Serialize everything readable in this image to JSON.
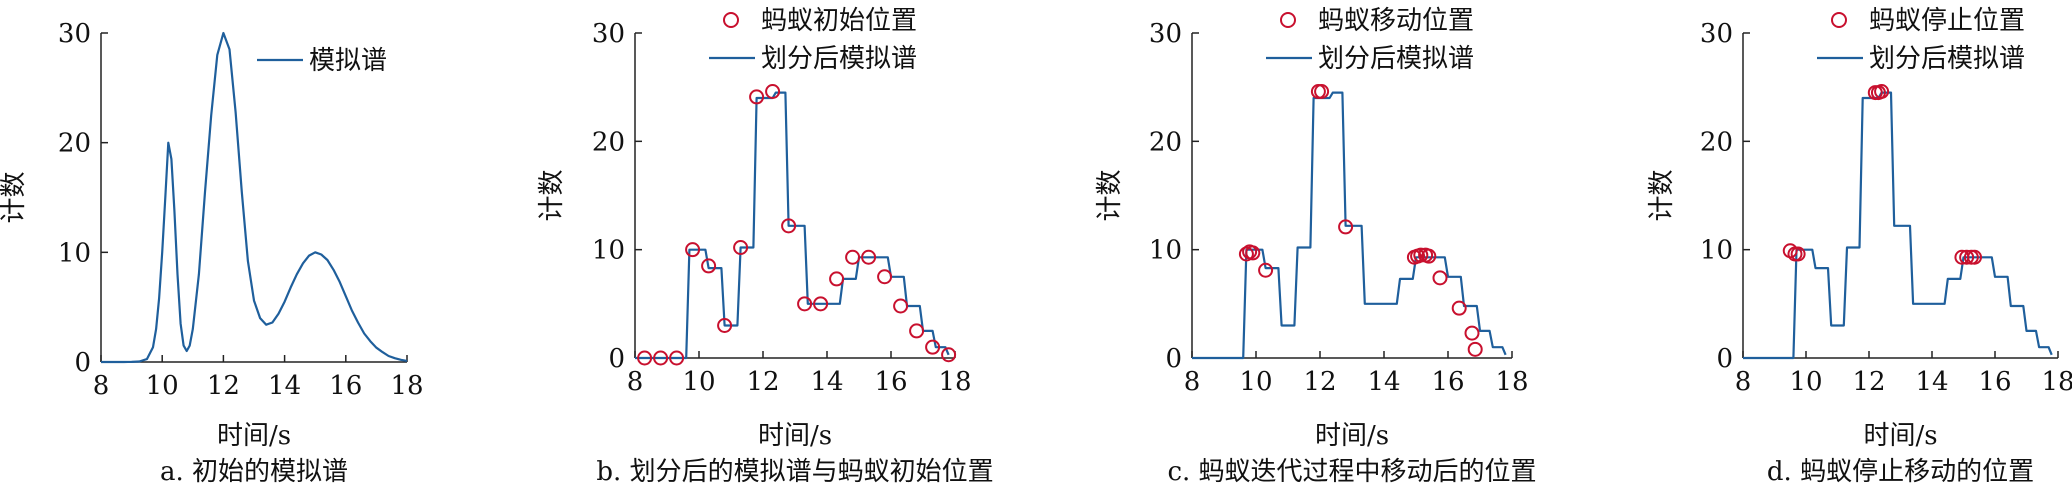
{
  "colors": {
    "line": "#1f5f9c",
    "marker": "#c8102e",
    "axis": "#222222"
  },
  "chart_data": [
    {
      "id": "a",
      "type": "line",
      "caption": "a. 初始的模拟谱",
      "xlabel": "时间/s",
      "ylabel": "计数",
      "xlim": [
        8,
        18
      ],
      "ylim": [
        0,
        30
      ],
      "xticks": [
        8,
        10,
        12,
        14,
        16,
        18
      ],
      "yticks": [
        0,
        10,
        20,
        30
      ],
      "xtick_labels": [
        "8",
        "10",
        "12",
        "14",
        "16",
        "18"
      ],
      "ytick_labels": [
        "0",
        "10",
        "20",
        "30"
      ],
      "legend": {
        "position": "top-right",
        "entries": [
          {
            "kind": "line",
            "label": "模拟谱"
          }
        ]
      },
      "series": [
        {
          "name": "模拟谱",
          "style": "line",
          "x": [
            8.0,
            8.25,
            8.5,
            8.75,
            9.0,
            9.25,
            9.5,
            9.7,
            9.8,
            9.9,
            10.0,
            10.1,
            10.2,
            10.3,
            10.4,
            10.5,
            10.6,
            10.7,
            10.8,
            10.9,
            11.0,
            11.2,
            11.4,
            11.6,
            11.8,
            12.0,
            12.2,
            12.4,
            12.6,
            12.8,
            13.0,
            13.2,
            13.4,
            13.6,
            13.8,
            14.0,
            14.2,
            14.4,
            14.6,
            14.8,
            15.0,
            15.2,
            15.4,
            15.6,
            15.8,
            16.0,
            16.2,
            16.4,
            16.6,
            16.8,
            17.0,
            17.2,
            17.4,
            17.6,
            17.8,
            18.0
          ],
          "y": [
            0.0,
            0.0,
            0.0,
            0.0,
            0.01,
            0.05,
            0.26,
            1.35,
            3.0,
            5.8,
            10.0,
            15.0,
            20.0,
            18.5,
            13.8,
            8.0,
            3.5,
            1.5,
            1.0,
            1.5,
            3.0,
            8.0,
            15.5,
            22.5,
            28.0,
            30.0,
            28.5,
            22.8,
            15.5,
            9.2,
            5.6,
            4.0,
            3.4,
            3.6,
            4.4,
            5.5,
            6.8,
            8.0,
            9.0,
            9.7,
            10.0,
            9.8,
            9.3,
            8.4,
            7.3,
            6.0,
            4.7,
            3.6,
            2.6,
            1.9,
            1.3,
            0.9,
            0.55,
            0.35,
            0.2,
            0.1
          ]
        }
      ]
    },
    {
      "id": "b",
      "type": "line",
      "caption": "b. 划分后的模拟谱与蚂蚁初始位置",
      "xlabel": "时间/s",
      "ylabel": "计数",
      "xlim": [
        8,
        18
      ],
      "ylim": [
        0,
        30
      ],
      "xticks": [
        8,
        10,
        12,
        14,
        16,
        18
      ],
      "yticks": [
        0,
        10,
        20,
        30
      ],
      "xtick_labels": [
        "8",
        "10",
        "12",
        "14",
        "16",
        "18"
      ],
      "ytick_labels": [
        "0",
        "10",
        "20",
        "30"
      ],
      "legend": {
        "position": "top-right",
        "entries": [
          {
            "kind": "marker",
            "label": "蚂蚁初始位置"
          },
          {
            "kind": "line",
            "label": "划分后模拟谱"
          }
        ]
      },
      "series": [
        {
          "name": "划分后模拟谱",
          "style": "step",
          "x": [
            8.0,
            9.6,
            9.7,
            10.2,
            10.3,
            10.7,
            10.8,
            11.2,
            11.3,
            11.7,
            11.8,
            12.3,
            12.4,
            12.7,
            12.8,
            13.3,
            13.4,
            13.9,
            14.0,
            14.4,
            14.5,
            14.9,
            15.0,
            15.5,
            15.6,
            15.9,
            16.0,
            16.4,
            16.5,
            16.9,
            17.0,
            17.3,
            17.4,
            17.7,
            17.8
          ],
          "y": [
            0,
            0,
            10.0,
            10.0,
            8.3,
            8.3,
            3.0,
            3.0,
            10.2,
            10.2,
            24.0,
            24.0,
            24.5,
            24.5,
            12.2,
            12.2,
            5.0,
            5.0,
            5.0,
            5.0,
            7.3,
            7.3,
            9.3,
            9.3,
            9.3,
            9.3,
            7.5,
            7.5,
            4.8,
            4.8,
            2.5,
            2.5,
            1.0,
            1.0,
            0.3
          ]
        },
        {
          "name": "蚂蚁初始位置",
          "style": "markers",
          "x": [
            8.3,
            8.8,
            9.3,
            9.8,
            10.3,
            10.8,
            11.3,
            11.8,
            12.3,
            12.8,
            13.3,
            13.8,
            14.3,
            14.8,
            15.3,
            15.8,
            16.3,
            16.8,
            17.3,
            17.8
          ],
          "y": [
            0,
            0,
            0,
            10.0,
            8.5,
            3.0,
            10.2,
            24.1,
            24.6,
            12.2,
            5.0,
            5.0,
            7.3,
            9.3,
            9.3,
            7.5,
            4.8,
            2.5,
            1.0,
            0.3
          ]
        }
      ]
    },
    {
      "id": "c",
      "type": "line",
      "caption": "c. 蚂蚁迭代过程中移动后的位置",
      "xlabel": "时间/s",
      "ylabel": "计数",
      "xlim": [
        8,
        18
      ],
      "ylim": [
        0,
        30
      ],
      "xticks": [
        8,
        10,
        12,
        14,
        16,
        18
      ],
      "yticks": [
        0,
        10,
        20,
        30
      ],
      "xtick_labels": [
        "8",
        "10",
        "12",
        "14",
        "16",
        "18"
      ],
      "ytick_labels": [
        "0",
        "10",
        "20",
        "30"
      ],
      "legend": {
        "position": "top-right",
        "entries": [
          {
            "kind": "marker",
            "label": "蚂蚁移动位置"
          },
          {
            "kind": "line",
            "label": "划分后模拟谱"
          }
        ]
      },
      "series": [
        {
          "name": "划分后模拟谱",
          "style": "step",
          "x": [
            8.0,
            9.6,
            9.7,
            10.2,
            10.3,
            10.7,
            10.8,
            11.2,
            11.3,
            11.7,
            11.8,
            12.3,
            12.4,
            12.7,
            12.8,
            13.3,
            13.4,
            13.9,
            14.0,
            14.4,
            14.5,
            14.9,
            15.0,
            15.5,
            15.6,
            15.9,
            16.0,
            16.4,
            16.5,
            16.9,
            17.0,
            17.3,
            17.4,
            17.7,
            17.8
          ],
          "y": [
            0,
            0,
            10.0,
            10.0,
            8.3,
            8.3,
            3.0,
            3.0,
            10.2,
            10.2,
            24.0,
            24.0,
            24.5,
            24.5,
            12.2,
            12.2,
            5.0,
            5.0,
            5.0,
            5.0,
            7.3,
            7.3,
            9.3,
            9.3,
            9.3,
            9.3,
            7.5,
            7.5,
            4.8,
            4.8,
            2.5,
            2.5,
            1.0,
            1.0,
            0.3
          ]
        },
        {
          "name": "蚂蚁移动位置",
          "style": "markers",
          "x": [
            9.7,
            9.8,
            9.9,
            10.3,
            11.95,
            12.05,
            12.8,
            14.95,
            15.05,
            15.15,
            15.3,
            15.4,
            15.75,
            16.35,
            16.75,
            16.85
          ],
          "y": [
            9.6,
            9.8,
            9.7,
            8.1,
            24.6,
            24.6,
            12.1,
            9.3,
            9.4,
            9.5,
            9.5,
            9.4,
            7.4,
            4.6,
            2.3,
            0.8
          ]
        }
      ]
    },
    {
      "id": "d",
      "type": "line",
      "caption": "d. 蚂蚁停止移动的位置",
      "xlabel": "时间/s",
      "ylabel": "计数",
      "xlim": [
        8,
        18
      ],
      "ylim": [
        0,
        30
      ],
      "xticks": [
        8,
        10,
        12,
        14,
        16,
        18
      ],
      "yticks": [
        0,
        10,
        20,
        30
      ],
      "xtick_labels": [
        "8",
        "10",
        "12",
        "14",
        "16",
        "18"
      ],
      "ytick_labels": [
        "0",
        "10",
        "20",
        "30"
      ],
      "legend": {
        "position": "top-right",
        "entries": [
          {
            "kind": "marker",
            "label": "蚂蚁停止位置"
          },
          {
            "kind": "line",
            "label": "划分后模拟谱"
          }
        ]
      },
      "series": [
        {
          "name": "划分后模拟谱",
          "style": "step",
          "x": [
            8.0,
            9.6,
            9.7,
            10.2,
            10.3,
            10.7,
            10.8,
            11.2,
            11.3,
            11.7,
            11.8,
            12.3,
            12.4,
            12.7,
            12.8,
            13.3,
            13.4,
            13.9,
            14.0,
            14.4,
            14.5,
            14.9,
            15.0,
            15.5,
            15.6,
            15.9,
            16.0,
            16.4,
            16.5,
            16.9,
            17.0,
            17.3,
            17.4,
            17.7,
            17.8
          ],
          "y": [
            0,
            0,
            10.0,
            10.0,
            8.3,
            8.3,
            3.0,
            3.0,
            10.2,
            10.2,
            24.0,
            24.0,
            24.5,
            24.5,
            12.2,
            12.2,
            5.0,
            5.0,
            5.0,
            5.0,
            7.3,
            7.3,
            9.3,
            9.3,
            9.3,
            9.3,
            7.5,
            7.5,
            4.8,
            4.8,
            2.5,
            2.5,
            1.0,
            1.0,
            0.3
          ]
        },
        {
          "name": "蚂蚁停止位置",
          "style": "markers",
          "x": [
            9.5,
            9.65,
            9.75,
            12.2,
            12.3,
            12.4,
            14.95,
            15.1,
            15.25,
            15.35
          ],
          "y": [
            9.9,
            9.6,
            9.6,
            24.5,
            24.5,
            24.6,
            9.3,
            9.3,
            9.3,
            9.3
          ]
        }
      ]
    }
  ]
}
